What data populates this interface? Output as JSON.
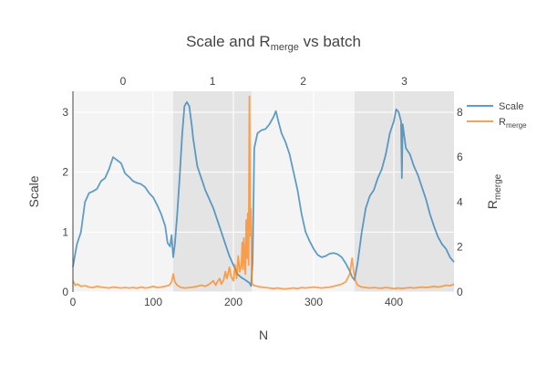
{
  "chart_data": {
    "type": "line",
    "title": {
      "main": "Scale and R",
      "sub": "merge",
      "tail": " vs batch"
    },
    "xlabel": "N",
    "ylabel_left": "Scale",
    "ylabel_right": {
      "main": "R",
      "sub": "merge"
    },
    "xlim": [
      0,
      475
    ],
    "ylim_left": [
      0,
      3.35
    ],
    "ylim_right": [
      0,
      8.93
    ],
    "x_ticks": [
      0,
      100,
      200,
      300,
      400
    ],
    "y_left_ticks": [
      0,
      1,
      2,
      3
    ],
    "y_right_ticks": [
      0,
      2,
      4,
      6,
      8
    ],
    "grid": true,
    "legend_position": "top-right",
    "batches": [
      {
        "label": "0",
        "start": 0,
        "end": 125,
        "shaded": false
      },
      {
        "label": "1",
        "start": 125,
        "end": 223,
        "shaded": true
      },
      {
        "label": "2",
        "start": 223,
        "end": 351,
        "shaded": false
      },
      {
        "label": "3",
        "start": 351,
        "end": 475,
        "shaded": true
      }
    ],
    "series": [
      {
        "name": "Scale",
        "axis": "left",
        "color": "#1f77b4",
        "points": [
          [
            0,
            0.42
          ],
          [
            5,
            0.8
          ],
          [
            10,
            1.0
          ],
          [
            15,
            1.5
          ],
          [
            20,
            1.65
          ],
          [
            25,
            1.68
          ],
          [
            30,
            1.72
          ],
          [
            35,
            1.85
          ],
          [
            40,
            1.9
          ],
          [
            45,
            2.05
          ],
          [
            50,
            2.25
          ],
          [
            55,
            2.2
          ],
          [
            60,
            2.15
          ],
          [
            65,
            1.98
          ],
          [
            70,
            1.92
          ],
          [
            75,
            1.85
          ],
          [
            80,
            1.82
          ],
          [
            85,
            1.8
          ],
          [
            90,
            1.75
          ],
          [
            95,
            1.65
          ],
          [
            100,
            1.58
          ],
          [
            105,
            1.45
          ],
          [
            110,
            1.3
          ],
          [
            115,
            1.1
          ],
          [
            118,
            0.82
          ],
          [
            121,
            0.76
          ],
          [
            123,
            0.95
          ],
          [
            125,
            0.58
          ],
          [
            127,
            0.8
          ],
          [
            130,
            1.3
          ],
          [
            133,
            1.9
          ],
          [
            136,
            2.6
          ],
          [
            139,
            3.1
          ],
          [
            142,
            3.17
          ],
          [
            145,
            3.1
          ],
          [
            148,
            2.8
          ],
          [
            150,
            2.55
          ],
          [
            155,
            2.1
          ],
          [
            160,
            1.9
          ],
          [
            165,
            1.7
          ],
          [
            170,
            1.55
          ],
          [
            175,
            1.4
          ],
          [
            180,
            1.2
          ],
          [
            185,
            1.0
          ],
          [
            190,
            0.8
          ],
          [
            195,
            0.6
          ],
          [
            200,
            0.45
          ],
          [
            205,
            0.3
          ],
          [
            210,
            0.24
          ],
          [
            215,
            0.2
          ],
          [
            220,
            0.15
          ],
          [
            222,
            0.1
          ],
          [
            224,
            0.5
          ],
          [
            226,
            2.4
          ],
          [
            230,
            2.65
          ],
          [
            235,
            2.7
          ],
          [
            240,
            2.72
          ],
          [
            245,
            2.8
          ],
          [
            250,
            2.92
          ],
          [
            253,
            3.02
          ],
          [
            256,
            2.85
          ],
          [
            260,
            2.65
          ],
          [
            265,
            2.5
          ],
          [
            270,
            2.3
          ],
          [
            275,
            2.0
          ],
          [
            280,
            1.7
          ],
          [
            285,
            1.3
          ],
          [
            290,
            1.0
          ],
          [
            295,
            0.85
          ],
          [
            300,
            0.72
          ],
          [
            305,
            0.62
          ],
          [
            310,
            0.58
          ],
          [
            315,
            0.6
          ],
          [
            320,
            0.64
          ],
          [
            325,
            0.65
          ],
          [
            330,
            0.63
          ],
          [
            335,
            0.58
          ],
          [
            340,
            0.48
          ],
          [
            345,
            0.35
          ],
          [
            348,
            0.25
          ],
          [
            351,
            0.2
          ],
          [
            355,
            0.5
          ],
          [
            360,
            1.0
          ],
          [
            365,
            1.4
          ],
          [
            370,
            1.6
          ],
          [
            375,
            1.7
          ],
          [
            380,
            1.9
          ],
          [
            385,
            2.05
          ],
          [
            390,
            2.3
          ],
          [
            395,
            2.65
          ],
          [
            400,
            2.85
          ],
          [
            403,
            3.05
          ],
          [
            406,
            3.0
          ],
          [
            409,
            2.85
          ],
          [
            410,
            1.9
          ],
          [
            411,
            2.8
          ],
          [
            415,
            2.4
          ],
          [
            420,
            2.3
          ],
          [
            425,
            2.1
          ],
          [
            430,
            1.95
          ],
          [
            435,
            1.75
          ],
          [
            440,
            1.55
          ],
          [
            445,
            1.3
          ],
          [
            450,
            1.1
          ],
          [
            455,
            0.92
          ],
          [
            460,
            0.8
          ],
          [
            465,
            0.72
          ],
          [
            470,
            0.58
          ],
          [
            475,
            0.5
          ]
        ]
      },
      {
        "name": "R_merge",
        "label_main": "R",
        "label_sub": "merge",
        "axis": "right",
        "color": "#ff7f0e",
        "points": [
          [
            0,
            0.5
          ],
          [
            3,
            0.3
          ],
          [
            6,
            0.35
          ],
          [
            10,
            0.25
          ],
          [
            15,
            0.28
          ],
          [
            20,
            0.22
          ],
          [
            25,
            0.2
          ],
          [
            30,
            0.25
          ],
          [
            35,
            0.22
          ],
          [
            40,
            0.2
          ],
          [
            45,
            0.18
          ],
          [
            50,
            0.22
          ],
          [
            55,
            0.2
          ],
          [
            60,
            0.18
          ],
          [
            65,
            0.2
          ],
          [
            70,
            0.18
          ],
          [
            75,
            0.2
          ],
          [
            80,
            0.17
          ],
          [
            85,
            0.22
          ],
          [
            90,
            0.18
          ],
          [
            95,
            0.2
          ],
          [
            100,
            0.25
          ],
          [
            105,
            0.2
          ],
          [
            110,
            0.22
          ],
          [
            115,
            0.25
          ],
          [
            120,
            0.3
          ],
          [
            123,
            0.45
          ],
          [
            125,
            0.8
          ],
          [
            127,
            0.45
          ],
          [
            130,
            0.3
          ],
          [
            135,
            0.2
          ],
          [
            140,
            0.18
          ],
          [
            145,
            0.2
          ],
          [
            150,
            0.22
          ],
          [
            155,
            0.25
          ],
          [
            160,
            0.3
          ],
          [
            165,
            0.25
          ],
          [
            170,
            0.35
          ],
          [
            175,
            0.5
          ],
          [
            178,
            0.3
          ],
          [
            180,
            0.45
          ],
          [
            183,
            0.6
          ],
          [
            185,
            0.35
          ],
          [
            188,
            0.55
          ],
          [
            190,
            0.9
          ],
          [
            192,
            0.6
          ],
          [
            195,
            1.1
          ],
          [
            197,
            0.7
          ],
          [
            200,
            0.5
          ],
          [
            202,
            1.2
          ],
          [
            204,
            0.6
          ],
          [
            206,
            1.6
          ],
          [
            208,
            0.9
          ],
          [
            210,
            1.2
          ],
          [
            211,
            2.2
          ],
          [
            212,
            1.0
          ],
          [
            213,
            2.4
          ],
          [
            215,
            0.8
          ],
          [
            216,
            3.2
          ],
          [
            217,
            1.5
          ],
          [
            218,
            3.5
          ],
          [
            219,
            1.2
          ],
          [
            220,
            8.7
          ],
          [
            221,
            2.5
          ],
          [
            222,
            3.7
          ],
          [
            223,
            0.4
          ],
          [
            225,
            0.3
          ],
          [
            230,
            0.25
          ],
          [
            235,
            0.22
          ],
          [
            240,
            0.2
          ],
          [
            245,
            0.18
          ],
          [
            250,
            0.15
          ],
          [
            255,
            0.18
          ],
          [
            260,
            0.15
          ],
          [
            265,
            0.14
          ],
          [
            270,
            0.16
          ],
          [
            275,
            0.18
          ],
          [
            280,
            0.15
          ],
          [
            285,
            0.2
          ],
          [
            290,
            0.18
          ],
          [
            295,
            0.2
          ],
          [
            300,
            0.22
          ],
          [
            305,
            0.2
          ],
          [
            310,
            0.18
          ],
          [
            315,
            0.2
          ],
          [
            320,
            0.22
          ],
          [
            325,
            0.25
          ],
          [
            330,
            0.3
          ],
          [
            335,
            0.35
          ],
          [
            340,
            0.45
          ],
          [
            345,
            0.8
          ],
          [
            348,
            1.5
          ],
          [
            350,
            0.9
          ],
          [
            352,
            0.5
          ],
          [
            355,
            0.3
          ],
          [
            360,
            0.22
          ],
          [
            365,
            0.2
          ],
          [
            370,
            0.18
          ],
          [
            375,
            0.2
          ],
          [
            380,
            0.18
          ],
          [
            385,
            0.17
          ],
          [
            390,
            0.2
          ],
          [
            395,
            0.18
          ],
          [
            400,
            0.15
          ],
          [
            405,
            0.18
          ],
          [
            410,
            0.16
          ],
          [
            415,
            0.18
          ],
          [
            420,
            0.2
          ],
          [
            425,
            0.18
          ],
          [
            430,
            0.2
          ],
          [
            435,
            0.22
          ],
          [
            440,
            0.2
          ],
          [
            445,
            0.22
          ],
          [
            450,
            0.25
          ],
          [
            455,
            0.22
          ],
          [
            460,
            0.25
          ],
          [
            465,
            0.3
          ],
          [
            470,
            0.28
          ],
          [
            475,
            0.35
          ]
        ]
      }
    ]
  }
}
